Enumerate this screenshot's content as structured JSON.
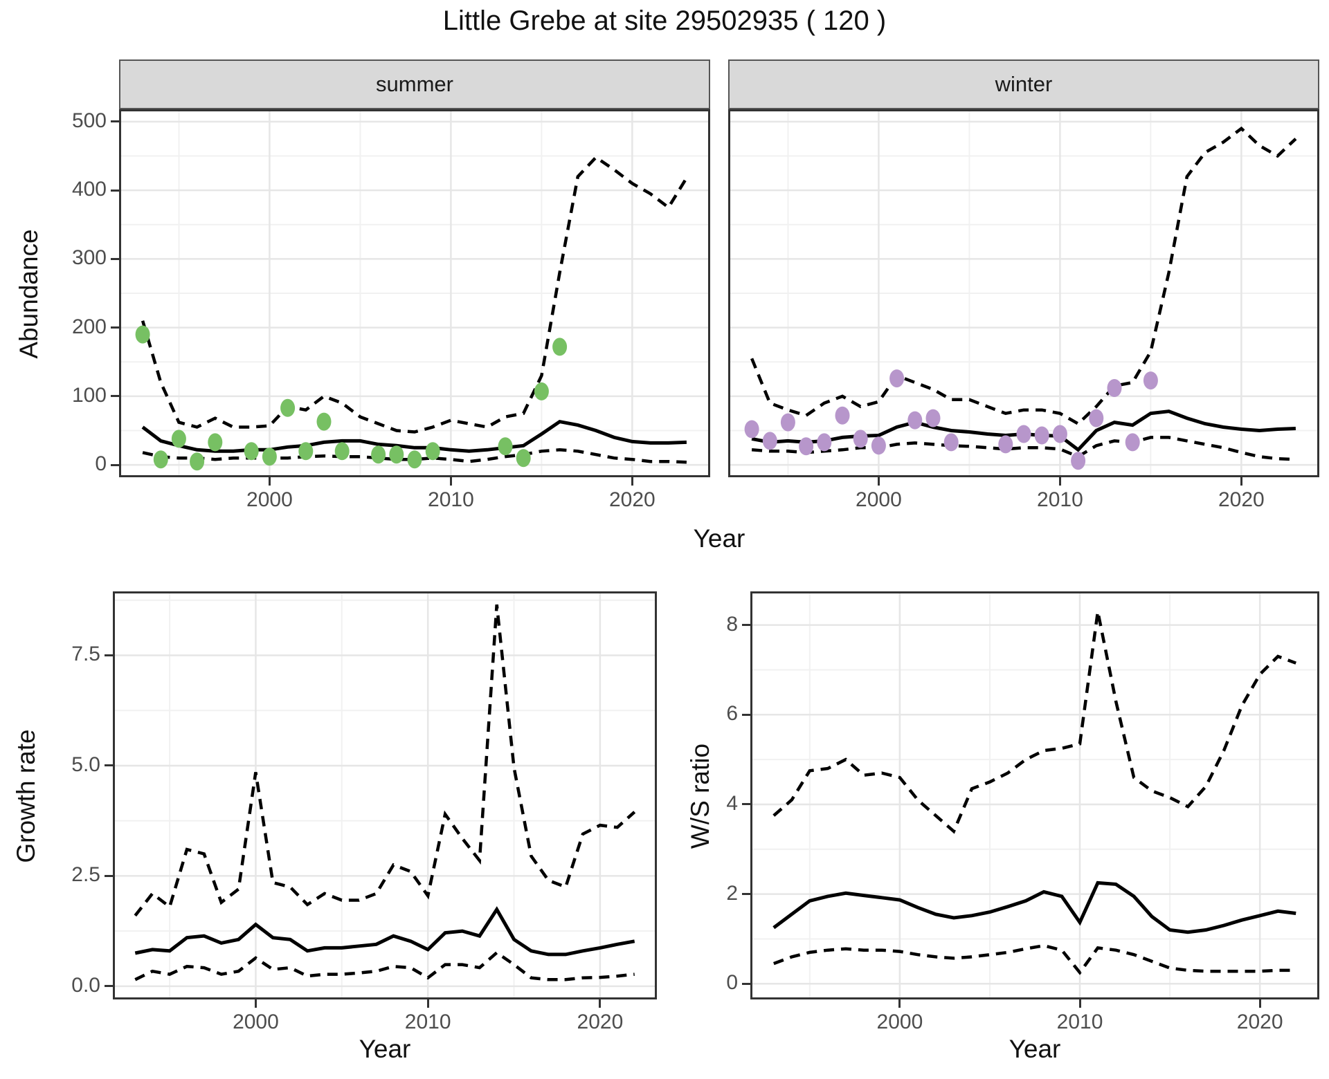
{
  "title": "Little Grebe at site 29502935 ( 120 )",
  "facets": {
    "summer": "summer",
    "winter": "winter"
  },
  "axes": {
    "abundance_y_label": "Abundance",
    "growth_y_label": "Growth rate",
    "ws_y_label": "W/S ratio",
    "top_x_label": "Year",
    "growth_x_label": "Year",
    "ws_x_label": "Year"
  },
  "colors": {
    "summer_points": "#77C063",
    "winter_points": "#B796CB",
    "line": "#000000",
    "strip_background": "#D9D9D9",
    "panel_border": "#333333",
    "grid_major": "#E6E6E6",
    "grid_minor": "#F1F1F1",
    "tick_label": "#4D4D4D"
  },
  "chart_data": [
    {
      "id": "abundance-summer",
      "type": "line",
      "facet": "summer",
      "x_label": "Year",
      "y_label": "Abundance",
      "x_range": [
        1991.7,
        2024.3
      ],
      "y_range": [
        -18,
        518
      ],
      "x_ticks": [
        2000,
        2010,
        2020
      ],
      "x_tick_labels": [
        "2000",
        "2010",
        "2020"
      ],
      "x_minor": [
        1995,
        2005,
        2015
      ],
      "y_ticks": [
        0,
        100,
        200,
        300,
        400,
        500
      ],
      "y_tick_labels": [
        "0",
        "100",
        "200",
        "300",
        "400",
        "500"
      ],
      "y_minor": [
        50,
        150,
        250,
        350,
        450
      ],
      "years": [
        1993,
        1994,
        1995,
        1996,
        1997,
        1998,
        1999,
        2000,
        2001,
        2002,
        2003,
        2004,
        2005,
        2006,
        2007,
        2008,
        2009,
        2010,
        2011,
        2012,
        2013,
        2014,
        2015,
        2016,
        2017,
        2018,
        2019,
        2020,
        2021,
        2022,
        2023
      ],
      "series": [
        {
          "name": "upper_ci",
          "style": "dashed",
          "values": [
            210,
            120,
            62,
            55,
            68,
            55,
            55,
            57,
            85,
            80,
            100,
            90,
            70,
            60,
            50,
            48,
            55,
            65,
            60,
            55,
            70,
            75,
            130,
            280,
            420,
            448,
            430,
            410,
            395,
            375,
            418
          ]
        },
        {
          "name": "fit",
          "style": "solid",
          "values": [
            55,
            35,
            28,
            22,
            20,
            20,
            22,
            22,
            26,
            28,
            33,
            35,
            35,
            30,
            28,
            25,
            25,
            22,
            20,
            22,
            25,
            28,
            45,
            63,
            58,
            50,
            40,
            34,
            32,
            32,
            33
          ]
        },
        {
          "name": "lower_ci",
          "style": "dashed",
          "values": [
            18,
            12,
            10,
            10,
            8,
            10,
            10,
            10,
            10,
            12,
            13,
            12,
            12,
            10,
            8,
            8,
            10,
            8,
            5,
            8,
            12,
            15,
            20,
            22,
            20,
            15,
            10,
            8,
            5,
            5,
            4
          ]
        }
      ],
      "points": {
        "name": "observed_counts",
        "color_key": "summer_points",
        "years": [
          1993,
          1994,
          1995,
          1996,
          1997,
          1999,
          2000,
          2001,
          2002,
          2003,
          2004,
          2006,
          2007,
          2008,
          2009,
          2013,
          2014,
          2015,
          2016
        ],
        "values": [
          190,
          8,
          38,
          5,
          33,
          20,
          12,
          83,
          20,
          63,
          20,
          15,
          15,
          8,
          20,
          27,
          10,
          107,
          172
        ]
      }
    },
    {
      "id": "abundance-winter",
      "type": "line",
      "facet": "winter",
      "x_label": "Year",
      "y_label": "Abundance",
      "x_range": [
        1991.7,
        2024.3
      ],
      "y_range": [
        -18,
        518
      ],
      "x_ticks": [
        2000,
        2010,
        2020
      ],
      "x_tick_labels": [
        "2000",
        "2010",
        "2020"
      ],
      "x_minor": [
        1995,
        2005,
        2015
      ],
      "y_ticks": [
        0,
        100,
        200,
        300,
        400,
        500
      ],
      "y_tick_labels": [],
      "y_minor": [
        50,
        150,
        250,
        350,
        450
      ],
      "years": [
        1993,
        1994,
        1995,
        1996,
        1997,
        1998,
        1999,
        2000,
        2001,
        2002,
        2003,
        2004,
        2005,
        2006,
        2007,
        2008,
        2009,
        2010,
        2011,
        2012,
        2013,
        2014,
        2015,
        2016,
        2017,
        2018,
        2019,
        2020,
        2021,
        2022,
        2023
      ],
      "series": [
        {
          "name": "upper_ci",
          "style": "dashed",
          "values": [
            155,
            90,
            80,
            72,
            90,
            100,
            85,
            92,
            130,
            120,
            110,
            95,
            95,
            85,
            75,
            80,
            80,
            75,
            60,
            85,
            115,
            120,
            165,
            280,
            420,
            455,
            470,
            490,
            465,
            450,
            475
          ]
        },
        {
          "name": "fit",
          "style": "solid",
          "values": [
            38,
            33,
            35,
            33,
            35,
            40,
            42,
            43,
            55,
            62,
            55,
            50,
            48,
            45,
            43,
            45,
            43,
            42,
            22,
            50,
            62,
            58,
            75,
            78,
            68,
            60,
            55,
            52,
            50,
            52,
            53
          ]
        },
        {
          "name": "lower_ci",
          "style": "dashed",
          "values": [
            22,
            20,
            20,
            18,
            20,
            22,
            25,
            25,
            30,
            32,
            30,
            28,
            27,
            25,
            23,
            25,
            25,
            23,
            12,
            28,
            35,
            33,
            40,
            40,
            35,
            30,
            25,
            18,
            12,
            9,
            8
          ]
        }
      ],
      "points": {
        "name": "observed_counts",
        "color_key": "winter_points",
        "years": [
          1993,
          1994,
          1995,
          1996,
          1997,
          1998,
          1999,
          2000,
          2001,
          2002,
          2003,
          2004,
          2007,
          2008,
          2009,
          2010,
          2011,
          2012,
          2013,
          2014,
          2015
        ],
        "values": [
          52,
          35,
          62,
          27,
          33,
          72,
          38,
          28,
          126,
          65,
          68,
          33,
          30,
          45,
          43,
          45,
          6,
          68,
          112,
          33,
          123
        ]
      }
    },
    {
      "id": "growth-rate",
      "type": "line",
      "x_label": "Year",
      "y_label": "Growth rate",
      "x_range": [
        1991.7,
        2023.3
      ],
      "y_range": [
        -0.3,
        8.95
      ],
      "x_ticks": [
        2000,
        2010,
        2020
      ],
      "x_tick_labels": [
        "2000",
        "2010",
        "2020"
      ],
      "x_minor": [
        1995,
        2005,
        2015
      ],
      "y_ticks": [
        0,
        2.5,
        5,
        7.5
      ],
      "y_tick_labels": [
        "0.0",
        "2.5",
        "5.0",
        "7.5"
      ],
      "y_minor": [
        1.25,
        3.75,
        6.25,
        8.75
      ],
      "years": [
        1993,
        1994,
        1995,
        1996,
        1997,
        1998,
        1999,
        2000,
        2001,
        2002,
        2003,
        2004,
        2005,
        2006,
        2007,
        2008,
        2009,
        2010,
        2011,
        2012,
        2013,
        2014,
        2015,
        2016,
        2017,
        2018,
        2019,
        2020,
        2021,
        2022
      ],
      "series": [
        {
          "name": "upper_ci",
          "style": "dashed",
          "values": [
            1.6,
            2.1,
            1.8,
            3.1,
            3.0,
            1.9,
            2.2,
            4.85,
            2.35,
            2.25,
            1.85,
            2.1,
            1.95,
            1.95,
            2.1,
            2.75,
            2.6,
            2.05,
            3.9,
            3.35,
            2.85,
            8.65,
            4.95,
            2.95,
            2.4,
            2.25,
            3.45,
            3.65,
            3.6,
            3.95
          ]
        },
        {
          "name": "fit",
          "style": "solid",
          "values": [
            0.75,
            0.83,
            0.8,
            1.1,
            1.14,
            0.98,
            1.06,
            1.4,
            1.1,
            1.06,
            0.8,
            0.87,
            0.87,
            0.91,
            0.95,
            1.14,
            1.02,
            0.83,
            1.21,
            1.25,
            1.14,
            1.74,
            1.06,
            0.8,
            0.72,
            0.72,
            0.8,
            0.87,
            0.95,
            1.02
          ]
        },
        {
          "name": "lower_ci",
          "style": "dashed",
          "values": [
            0.15,
            0.34,
            0.27,
            0.45,
            0.42,
            0.27,
            0.34,
            0.64,
            0.38,
            0.42,
            0.23,
            0.27,
            0.27,
            0.3,
            0.34,
            0.45,
            0.42,
            0.19,
            0.49,
            0.49,
            0.42,
            0.76,
            0.49,
            0.19,
            0.15,
            0.15,
            0.19,
            0.2,
            0.23,
            0.27
          ]
        }
      ]
    },
    {
      "id": "ws-ratio",
      "type": "line",
      "x_label": "Year",
      "y_label": "W/S ratio",
      "x_range": [
        1991.7,
        2023.3
      ],
      "y_range": [
        -0.35,
        8.75
      ],
      "x_ticks": [
        2000,
        2010,
        2020
      ],
      "x_tick_labels": [
        "2000",
        "2010",
        "2020"
      ],
      "x_minor": [
        1995,
        2005,
        2015
      ],
      "y_ticks": [
        0,
        2,
        4,
        6,
        8
      ],
      "y_tick_labels": [
        "0",
        "2",
        "4",
        "6",
        "8"
      ],
      "y_minor": [
        1,
        3,
        5,
        7
      ],
      "years": [
        1993,
        1994,
        1995,
        1996,
        1997,
        1998,
        1999,
        2000,
        2001,
        2002,
        2003,
        2004,
        2005,
        2006,
        2007,
        2008,
        2009,
        2010,
        2011,
        2012,
        2013,
        2014,
        2015,
        2016,
        2017,
        2018,
        2019,
        2020,
        2021,
        2022
      ],
      "series": [
        {
          "name": "upper_ci",
          "style": "dashed",
          "values": [
            3.75,
            4.1,
            4.75,
            4.8,
            5.0,
            4.65,
            4.7,
            4.6,
            4.1,
            3.75,
            3.4,
            4.35,
            4.5,
            4.7,
            5.0,
            5.2,
            5.25,
            5.35,
            8.3,
            6.3,
            4.6,
            4.3,
            4.15,
            3.95,
            4.4,
            5.2,
            6.2,
            6.9,
            7.3,
            7.15
          ]
        },
        {
          "name": "fit",
          "style": "solid",
          "values": [
            1.25,
            1.55,
            1.85,
            1.95,
            2.02,
            1.97,
            1.92,
            1.87,
            1.7,
            1.55,
            1.47,
            1.52,
            1.6,
            1.72,
            1.85,
            2.05,
            1.95,
            1.37,
            2.25,
            2.22,
            1.95,
            1.5,
            1.2,
            1.15,
            1.2,
            1.3,
            1.42,
            1.52,
            1.62,
            1.57
          ]
        },
        {
          "name": "lower_ci",
          "style": "dashed",
          "values": [
            0.45,
            0.6,
            0.7,
            0.75,
            0.78,
            0.75,
            0.75,
            0.72,
            0.65,
            0.6,
            0.57,
            0.6,
            0.65,
            0.7,
            0.78,
            0.85,
            0.75,
            0.25,
            0.8,
            0.75,
            0.65,
            0.5,
            0.35,
            0.3,
            0.28,
            0.28,
            0.28,
            0.28,
            0.3,
            0.3
          ]
        }
      ]
    }
  ]
}
